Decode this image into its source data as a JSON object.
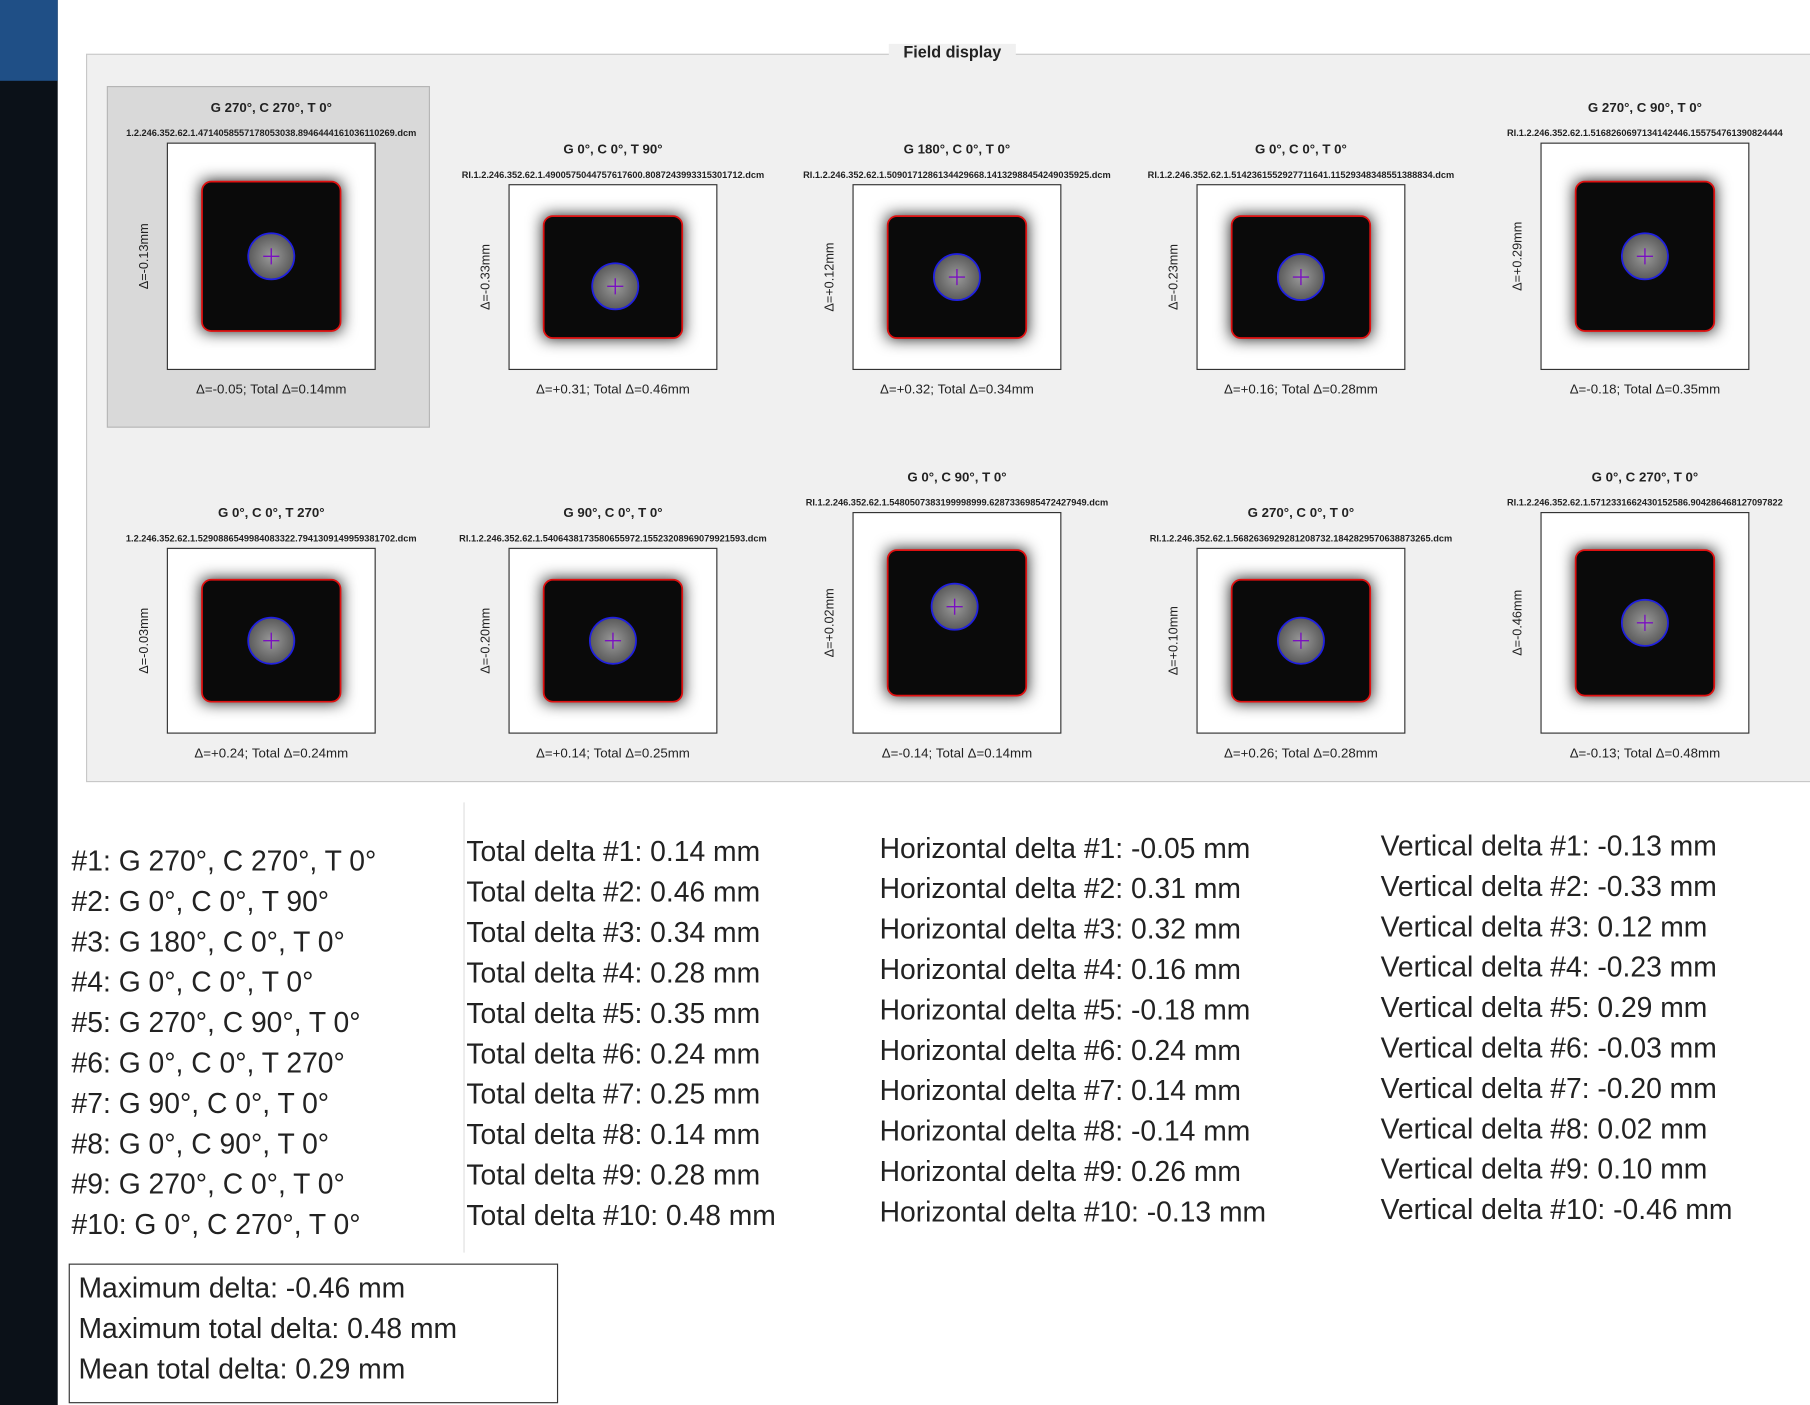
{
  "panel": {
    "title": "Field display"
  },
  "tiles": [
    {
      "title": "G 270°, C 270°, T 0°",
      "file": "1.2.246.352.62.1.4714058557178053038.8946444161036110269.dcm",
      "vertical": "Δ=-0.13mm",
      "bottom": "Δ=-0.05; Total Δ=0.14mm"
    },
    {
      "title": "G 0°, C 0°, T 90°",
      "file": "RI.1.2.246.352.62.1.4900575044757617600.8087243993315301712.dcm",
      "vertical": "Δ=-0.33mm",
      "bottom": "Δ=+0.31; Total Δ=0.46mm"
    },
    {
      "title": "G 180°, C 0°, T 0°",
      "file": "RI.1.2.246.352.62.1.5090171286134429668.14132988454249035925.dcm",
      "vertical": "Δ=+0.12mm",
      "bottom": "Δ=+0.32; Total Δ=0.34mm"
    },
    {
      "title": "G 0°, C 0°, T 0°",
      "file": "RI.1.2.246.352.62.1.5142361552927711641.11529348348551388834.dcm",
      "vertical": "Δ=-0.23mm",
      "bottom": "Δ=+0.16; Total Δ=0.28mm"
    },
    {
      "title": "G 270°, C 90°, T 0°",
      "file": "RI.1.2.246.352.62.1.5168260697134142446.155754761390824444",
      "vertical": "Δ=+0.29mm",
      "bottom": "Δ=-0.18; Total Δ=0.35mm"
    },
    {
      "title": "G 0°, C 0°, T 270°",
      "file": "1.2.246.352.62.1.5290886549984083322.7941309149959381702.dcm",
      "vertical": "Δ=-0.03mm",
      "bottom": "Δ=+0.24; Total Δ=0.24mm"
    },
    {
      "title": "G 90°, C 0°, T 0°",
      "file": "RI.1.2.246.352.62.1.5406438173580655972.15523208969079921593.dcm",
      "vertical": "Δ=-0.20mm",
      "bottom": "Δ=+0.14; Total Δ=0.25mm"
    },
    {
      "title": "G 0°, C 90°, T 0°",
      "file": "RI.1.2.246.352.62.1.5480507383199998999.6287336985472427949.dcm",
      "vertical": "Δ=+0.02mm",
      "bottom": "Δ=-0.14; Total Δ=0.14mm"
    },
    {
      "title": "G 270°, C 0°, T 0°",
      "file": "RI.1.2.246.352.62.1.5682636929281208732.1842829570638873265.dcm",
      "vertical": "Δ=+0.10mm",
      "bottom": "Δ=+0.26; Total Δ=0.28mm"
    },
    {
      "title": "G 0°, C 270°, T 0°",
      "file": "RI.1.2.246.352.62.1.5712331662430152586.904286468127097822",
      "vertical": "Δ=-0.46mm",
      "bottom": "Δ=-0.13; Total Δ=0.48mm"
    }
  ],
  "lists": {
    "orientations": [
      "#1: G 270°, C 270°, T 0°",
      "#2: G 0°, C 0°, T 90°",
      "#3: G 180°, C 0°, T 0°",
      "#4: G 0°, C 0°, T 0°",
      "#5: G 270°, C 90°, T 0°",
      "#6: G 0°, C 0°, T 270°",
      "#7: G 90°, C 0°, T 0°",
      "#8: G 0°, C 90°, T 0°",
      "#9: G 270°, C 0°, T 0°",
      "#10: G 0°, C 270°, T 0°"
    ],
    "total": [
      "Total delta #1: 0.14 mm",
      "Total delta #2: 0.46 mm",
      "Total delta #3: 0.34 mm",
      "Total delta #4: 0.28 mm",
      "Total delta #5: 0.35 mm",
      "Total delta #6: 0.24 mm",
      "Total delta #7: 0.25 mm",
      "Total delta #8: 0.14 mm",
      "Total delta #9: 0.28 mm",
      "Total delta #10: 0.48 mm"
    ],
    "horizontal": [
      "Horizontal delta #1: -0.05 mm",
      "Horizontal delta #2: 0.31 mm",
      "Horizontal delta #3: 0.32 mm",
      "Horizontal delta #4: 0.16 mm",
      "Horizontal delta #5: -0.18 mm",
      "Horizontal delta #6: 0.24 mm",
      "Horizontal delta #7: 0.14 mm",
      "Horizontal delta #8: -0.14 mm",
      "Horizontal delta #9: 0.26 mm",
      "Horizontal delta #10: -0.13 mm"
    ],
    "vertical": [
      "Vertical delta #1: -0.13 mm",
      "Vertical delta #2: -0.33 mm",
      "Vertical delta #3: 0.12 mm",
      "Vertical delta #4: -0.23 mm",
      "Vertical delta #5: 0.29 mm",
      "Vertical delta #6: -0.03 mm",
      "Vertical delta #7: -0.20 mm",
      "Vertical delta #8: 0.02 mm",
      "Vertical delta #9: 0.10 mm",
      "Vertical delta #10: -0.46 mm"
    ]
  },
  "summary": [
    "Maximum delta: -0.46 mm",
    "Maximum total delta: 0.48 mm",
    "Mean total delta: 0.29 mm"
  ]
}
